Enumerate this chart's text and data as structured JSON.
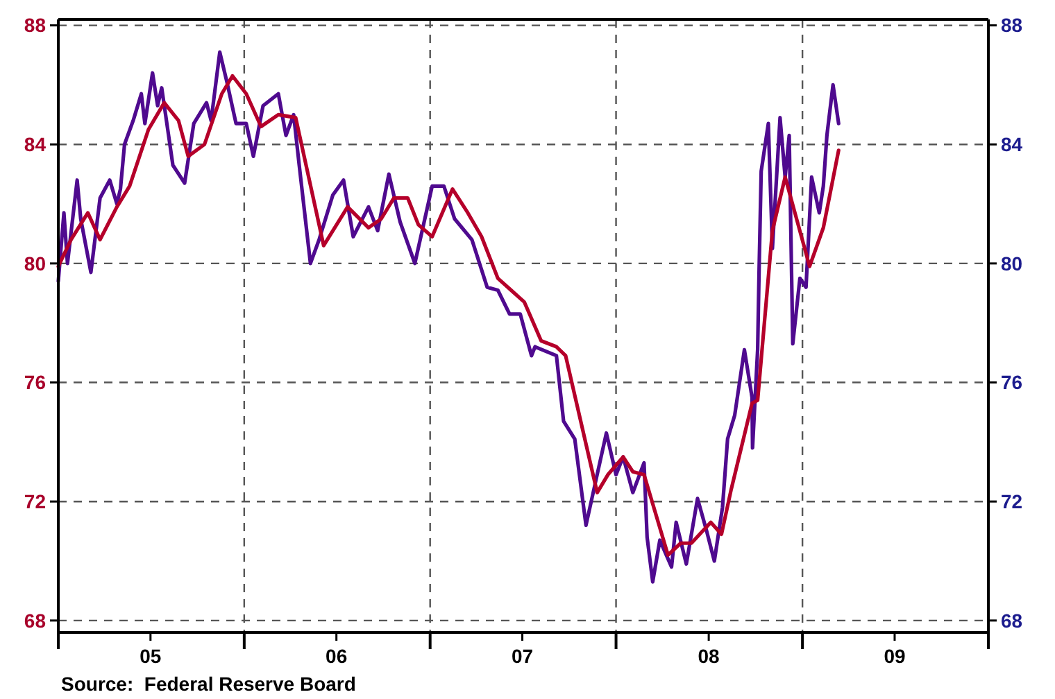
{
  "chart_data": {
    "type": "line",
    "annotations": [
      "Source:  Federal Reserve Board"
    ],
    "xlim": [
      "2005-01-01",
      "2010-01-01"
    ],
    "ylim": [
      67.6,
      88.2
    ],
    "yticks": [
      68,
      72,
      76,
      80,
      84,
      88
    ],
    "y2lim": [
      67.6,
      88.2
    ],
    "y2ticks": [
      68,
      72,
      76,
      80,
      84,
      88
    ],
    "xticks": [
      {
        "value": "2005-01-01",
        "label": null
      },
      {
        "value": "2005-07-01",
        "label": "05"
      },
      {
        "value": "2006-01-01",
        "label": null
      },
      {
        "value": "2006-07-01",
        "label": "06"
      },
      {
        "value": "2007-01-01",
        "label": null
      },
      {
        "value": "2007-07-01",
        "label": "07"
      },
      {
        "value": "2008-01-01",
        "label": null
      },
      {
        "value": "2008-07-01",
        "label": "08"
      },
      {
        "value": "2009-01-01",
        "label": null
      },
      {
        "value": "2009-07-01",
        "label": "09"
      },
      {
        "value": "2010-01-01",
        "label": null
      }
    ],
    "grid": true,
    "legend": false,
    "series": [
      {
        "color": "#4f0a8f",
        "axis": "y2",
        "x": [
          "2005-01-01",
          "2005-01-12",
          "2005-01-19",
          "2005-02-07",
          "2005-02-14",
          "2005-03-06",
          "2005-03-24",
          "2005-04-12",
          "2005-04-26",
          "2005-05-03",
          "2005-05-11",
          "2005-05-28",
          "2005-06-13",
          "2005-06-20",
          "2005-07-05",
          "2005-07-15",
          "2005-07-23",
          "2005-08-14",
          "2005-09-06",
          "2005-09-24",
          "2005-10-19",
          "2005-10-28",
          "2005-11-14",
          "2005-11-28",
          "2005-12-16",
          "2006-01-05",
          "2006-01-19",
          "2006-02-07",
          "2006-03-09",
          "2006-03-24",
          "2006-04-08",
          "2006-04-19",
          "2006-05-11",
          "2006-05-28",
          "2006-06-24",
          "2006-07-15",
          "2006-08-03",
          "2006-09-02",
          "2006-09-20",
          "2006-10-12",
          "2006-11-03",
          "2006-12-02",
          "2007-01-05",
          "2007-01-28",
          "2007-02-18",
          "2007-03-24",
          "2007-04-23",
          "2007-05-14",
          "2007-06-06",
          "2007-06-27",
          "2007-07-19",
          "2007-07-26",
          "2007-09-06",
          "2007-09-20",
          "2007-10-12",
          "2007-11-03",
          "2007-11-21",
          "2007-12-13",
          "2008-01-01",
          "2008-01-15",
          "2008-02-03",
          "2008-02-25",
          "2008-03-02",
          "2008-03-13",
          "2008-03-27",
          "2008-04-19",
          "2008-04-28",
          "2008-05-18",
          "2008-06-09",
          "2008-06-27",
          "2008-07-12",
          "2008-07-28",
          "2008-08-07",
          "2008-08-21",
          "2008-09-09",
          "2008-09-24",
          "2008-09-25",
          "2008-10-05",
          "2008-10-08",
          "2008-10-12",
          "2008-10-26",
          "2008-11-03",
          "2008-11-18",
          "2008-11-28",
          "2008-12-06",
          "2008-12-13",
          "2008-12-27",
          "2009-01-08",
          "2009-01-19",
          "2009-02-03",
          "2009-02-11",
          "2009-02-18",
          "2009-03-02",
          "2009-03-13"
        ],
        "values": [
          79.4,
          81.7,
          80.0,
          82.8,
          81.5,
          79.7,
          82.2,
          82.8,
          82.0,
          82.5,
          84.0,
          84.8,
          85.7,
          84.7,
          86.4,
          85.3,
          85.9,
          83.3,
          82.7,
          84.7,
          85.4,
          84.8,
          87.1,
          86.1,
          84.7,
          84.7,
          83.6,
          85.3,
          85.7,
          84.3,
          85.0,
          83.3,
          80.0,
          80.8,
          82.3,
          82.8,
          80.9,
          81.9,
          81.1,
          83.0,
          81.4,
          80.0,
          82.6,
          82.6,
          81.5,
          80.8,
          79.2,
          79.1,
          78.3,
          78.3,
          76.9,
          77.2,
          76.9,
          74.7,
          74.1,
          71.2,
          72.6,
          74.3,
          72.9,
          73.5,
          72.3,
          73.3,
          70.8,
          69.3,
          70.7,
          69.8,
          71.3,
          69.9,
          72.1,
          71.0,
          70.0,
          71.8,
          74.1,
          74.9,
          77.1,
          75.5,
          73.8,
          77.1,
          79.9,
          83.1,
          84.7,
          80.5,
          84.9,
          82.9,
          84.3,
          77.3,
          79.5,
          79.2,
          82.9,
          81.7,
          82.6,
          84.3,
          86.0,
          84.7
        ]
      },
      {
        "color": "#b5002a",
        "x": [
          "2005-01-01",
          "2005-01-26",
          "2005-02-28",
          "2005-03-24",
          "2005-04-26",
          "2005-05-21",
          "2005-06-27",
          "2005-07-28",
          "2005-08-25",
          "2005-09-13",
          "2005-10-15",
          "2005-11-18",
          "2005-12-09",
          "2006-01-05",
          "2006-02-03",
          "2006-03-09",
          "2006-04-12",
          "2006-06-06",
          "2006-07-23",
          "2006-09-02",
          "2006-09-27",
          "2006-10-22",
          "2006-11-18",
          "2006-12-09",
          "2007-01-05",
          "2007-02-14",
          "2007-03-16",
          "2007-04-12",
          "2007-05-14",
          "2007-06-09",
          "2007-07-05",
          "2007-08-07",
          "2007-09-06",
          "2007-09-24",
          "2007-11-25",
          "2007-12-16",
          "2008-01-15",
          "2008-02-03",
          "2008-02-25",
          "2008-04-12",
          "2008-05-07",
          "2008-05-28",
          "2008-07-05",
          "2008-07-26",
          "2008-08-14",
          "2008-09-24",
          "2008-10-05",
          "2008-11-03",
          "2008-11-28",
          "2009-01-15",
          "2009-02-11",
          "2009-03-13"
        ],
        "values": [
          79.9,
          80.8,
          81.7,
          80.8,
          81.9,
          82.6,
          84.5,
          85.4,
          84.8,
          83.6,
          84.0,
          85.7,
          86.3,
          85.7,
          84.6,
          85.0,
          84.9,
          80.6,
          81.9,
          81.2,
          81.5,
          82.2,
          82.2,
          81.3,
          80.9,
          82.5,
          81.7,
          80.9,
          79.5,
          79.1,
          78.7,
          77.4,
          77.2,
          76.9,
          72.3,
          72.9,
          73.5,
          73.0,
          72.9,
          70.2,
          70.6,
          70.6,
          71.3,
          70.9,
          72.4,
          75.3,
          75.4,
          81.1,
          82.9,
          79.9,
          81.2,
          83.8
        ]
      }
    ]
  }
}
